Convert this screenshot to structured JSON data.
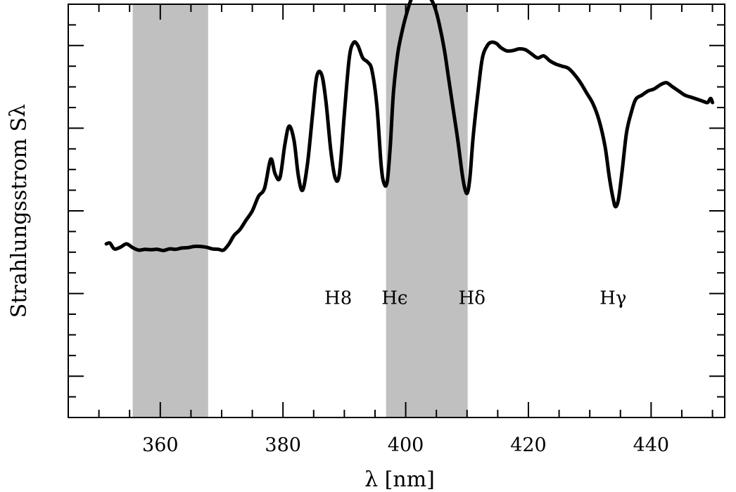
{
  "chart_data": {
    "type": "line",
    "xlabel": "λ [nm]",
    "ylabel": "Strahlungsstrom S",
    "ylabel_subscript": "λ",
    "xlim": [
      345,
      452
    ],
    "ylim": [
      0,
      10
    ],
    "x_ticks": [
      360,
      380,
      400,
      420,
      440
    ],
    "x_tick_labels": [
      "360",
      "380",
      "400",
      "420",
      "440"
    ],
    "y_tick_labels_shown": false,
    "grid": false,
    "shaded_bands": [
      {
        "from": 355.5,
        "to": 367.8,
        "color": "#c0c0c0"
      },
      {
        "from": 396.8,
        "to": 410.1,
        "color": "#c0c0c0"
      }
    ],
    "annotations": [
      {
        "text": "H8",
        "x": 389.0,
        "y": 2.75
      },
      {
        "text": "Hϵ",
        "x": 398.2,
        "y": 2.75
      },
      {
        "text": "Hδ",
        "x": 410.8,
        "y": 2.75
      },
      {
        "text": "Hγ",
        "x": 433.8,
        "y": 2.75
      }
    ],
    "series": [
      {
        "color": "#000000",
        "x": [
          351.2,
          351.8,
          352.5,
          353.5,
          354.5,
          355.5,
          356.5,
          357.5,
          358.5,
          359.5,
          360.5,
          361.5,
          362.5,
          363.5,
          364.5,
          365.5,
          366.5,
          367.5,
          368.5,
          369.5,
          370.3,
          371.2,
          372.0,
          373.0,
          374.0,
          375.0,
          376.0,
          377.0,
          378.0,
          378.7,
          379.5,
          380.3,
          381.0,
          381.8,
          382.5,
          383.2,
          384.0,
          384.8,
          385.5,
          386.3,
          387.0,
          387.8,
          388.5,
          389.2,
          390.0,
          390.8,
          391.5,
          392.2,
          393.0,
          393.8,
          394.5,
          395.3,
          396.0,
          396.5,
          397.0,
          397.5,
          398.0,
          398.7,
          399.5,
          400.3,
          401.0,
          401.8,
          402.5,
          403.3,
          404.0,
          404.8,
          405.5,
          406.3,
          407.0,
          407.8,
          408.5,
          409.2,
          409.7,
          410.1,
          410.5,
          411.0,
          411.8,
          412.5,
          413.3,
          414.0,
          414.8,
          415.5,
          416.5,
          417.5,
          418.5,
          419.5,
          420.5,
          421.5,
          422.5,
          423.5,
          424.5,
          425.5,
          426.5,
          427.5,
          428.5,
          429.5,
          430.5,
          431.5,
          432.5,
          433.2,
          433.8,
          434.2,
          434.7,
          435.3,
          436.0,
          436.8,
          437.5,
          438.5,
          439.5,
          440.5,
          441.5,
          442.5,
          443.5,
          444.5,
          445.5,
          446.5,
          447.5,
          448.5,
          449.2,
          449.7,
          450.0
        ],
        "y": [
          4.2,
          4.22,
          4.08,
          4.12,
          4.2,
          4.11,
          4.05,
          4.07,
          4.06,
          4.07,
          4.04,
          4.08,
          4.07,
          4.1,
          4.11,
          4.14,
          4.14,
          4.12,
          4.08,
          4.07,
          4.05,
          4.2,
          4.4,
          4.55,
          4.78,
          5.0,
          5.35,
          5.55,
          6.25,
          5.9,
          5.8,
          6.6,
          7.05,
          6.7,
          5.85,
          5.5,
          6.15,
          7.3,
          8.25,
          8.3,
          7.65,
          6.45,
          5.8,
          5.9,
          7.35,
          8.7,
          9.07,
          9.0,
          8.7,
          8.6,
          8.4,
          7.55,
          6.1,
          5.65,
          5.72,
          6.6,
          7.85,
          8.8,
          9.4,
          9.85,
          10.15,
          10.25,
          10.23,
          10.2,
          10.15,
          9.9,
          9.5,
          8.9,
          8.2,
          7.4,
          6.7,
          5.9,
          5.5,
          5.45,
          5.85,
          6.8,
          7.9,
          8.7,
          9.0,
          9.08,
          9.05,
          8.95,
          8.87,
          8.88,
          8.92,
          8.9,
          8.8,
          8.7,
          8.75,
          8.63,
          8.55,
          8.5,
          8.45,
          8.3,
          8.1,
          7.85,
          7.6,
          7.2,
          6.55,
          5.8,
          5.3,
          5.1,
          5.3,
          6.0,
          6.9,
          7.4,
          7.7,
          7.8,
          7.9,
          7.95,
          8.05,
          8.1,
          8.0,
          7.9,
          7.8,
          7.75,
          7.7,
          7.65,
          7.62,
          7.72,
          7.62
        ]
      }
    ]
  }
}
